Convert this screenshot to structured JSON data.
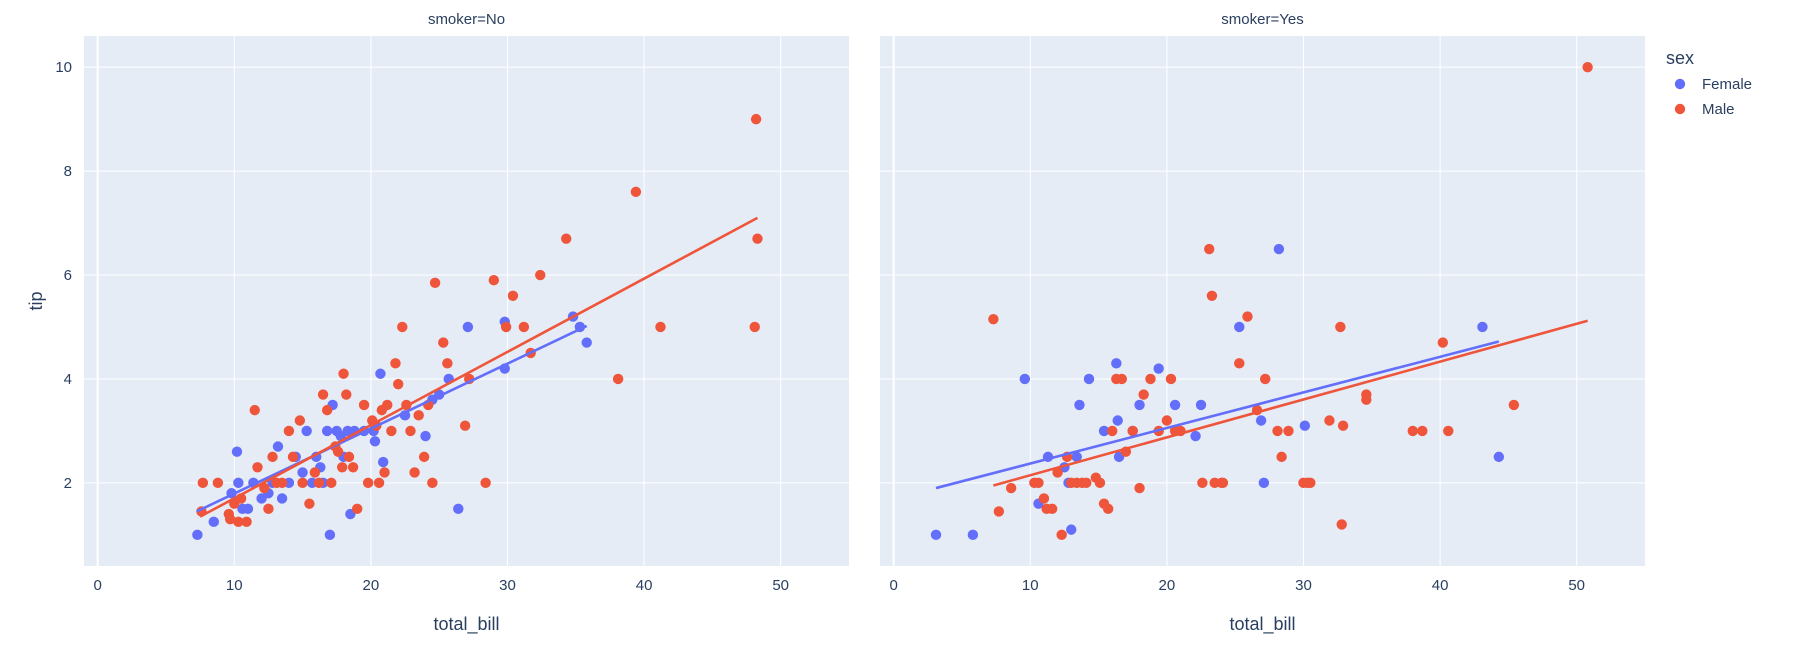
{
  "chart_data": {
    "type": "scatter",
    "trendline": "ols",
    "xlabel": "total_bill",
    "ylabel": "tip",
    "xlim": [
      -1,
      55
    ],
    "ylim": [
      0.4,
      10.6
    ],
    "xticks": [
      0,
      10,
      20,
      30,
      40,
      50
    ],
    "yticks": [
      2,
      4,
      6,
      8,
      10
    ],
    "grid": true,
    "legend": {
      "title": "sex",
      "placement": "top-right",
      "entries": [
        "Female",
        "Male"
      ]
    },
    "colors": {
      "Female": "#636efa",
      "Male": "#ef553b"
    },
    "facets": [
      {
        "title": "smoker=No",
        "series": [
          {
            "name": "Female",
            "points": [
              [
                7.3,
                1.0
              ],
              [
                8.5,
                1.25
              ],
              [
                9.8,
                1.8
              ],
              [
                10.2,
                2.6
              ],
              [
                10.3,
                2.0
              ],
              [
                10.6,
                1.5
              ],
              [
                11.0,
                1.5
              ],
              [
                11.4,
                2.0
              ],
              [
                12.0,
                1.7
              ],
              [
                12.5,
                1.8
              ],
              [
                12.8,
                2.0
              ],
              [
                13.2,
                2.7
              ],
              [
                13.5,
                1.7
              ],
              [
                14.0,
                2.0
              ],
              [
                14.5,
                2.5
              ],
              [
                15.0,
                2.2
              ],
              [
                15.3,
                3.0
              ],
              [
                15.7,
                2.0
              ],
              [
                16.0,
                2.5
              ],
              [
                16.3,
                2.3
              ],
              [
                16.5,
                2.0
              ],
              [
                16.8,
                3.0
              ],
              [
                17.0,
                1.0
              ],
              [
                17.2,
                3.5
              ],
              [
                17.5,
                3.0
              ],
              [
                17.8,
                2.9
              ],
              [
                18.0,
                2.5
              ],
              [
                18.3,
                3.0
              ],
              [
                18.5,
                1.4
              ],
              [
                18.8,
                3.0
              ],
              [
                19.5,
                3.0
              ],
              [
                20.2,
                3.0
              ],
              [
                20.3,
                2.8
              ],
              [
                20.7,
                4.1
              ],
              [
                20.9,
                2.4
              ],
              [
                22.5,
                3.3
              ],
              [
                24.0,
                2.9
              ],
              [
                24.5,
                3.6
              ],
              [
                25.0,
                3.7
              ],
              [
                25.7,
                4.0
              ],
              [
                26.4,
                1.5
              ],
              [
                27.1,
                5.0
              ],
              [
                29.8,
                5.1
              ],
              [
                29.8,
                4.2
              ],
              [
                34.8,
                5.2
              ],
              [
                35.3,
                5.0
              ],
              [
                35.8,
                4.7
              ]
            ]
          },
          {
            "name": "Male",
            "points": [
              [
                7.6,
                1.45
              ],
              [
                7.7,
                2.0
              ],
              [
                8.8,
                2.0
              ],
              [
                9.6,
                1.4
              ],
              [
                9.7,
                1.3
              ],
              [
                10.0,
                1.6
              ],
              [
                10.3,
                1.25
              ],
              [
                10.5,
                1.7
              ],
              [
                10.9,
                1.25
              ],
              [
                11.5,
                3.4
              ],
              [
                11.7,
                2.3
              ],
              [
                12.2,
                1.9
              ],
              [
                12.5,
                1.5
              ],
              [
                12.8,
                2.5
              ],
              [
                13.1,
                2.0
              ],
              [
                13.5,
                2.0
              ],
              [
                14.0,
                3.0
              ],
              [
                14.3,
                2.5
              ],
              [
                14.8,
                3.2
              ],
              [
                15.0,
                2.0
              ],
              [
                15.5,
                1.6
              ],
              [
                15.9,
                2.2
              ],
              [
                16.2,
                2.0
              ],
              [
                16.5,
                3.7
              ],
              [
                16.8,
                3.4
              ],
              [
                17.1,
                2.0
              ],
              [
                17.4,
                2.7
              ],
              [
                17.6,
                2.6
              ],
              [
                17.9,
                2.3
              ],
              [
                18.0,
                4.1
              ],
              [
                18.2,
                3.7
              ],
              [
                18.4,
                2.5
              ],
              [
                18.7,
                2.3
              ],
              [
                19.0,
                1.5
              ],
              [
                19.5,
                3.5
              ],
              [
                19.8,
                2.0
              ],
              [
                20.1,
                3.2
              ],
              [
                20.4,
                3.1
              ],
              [
                20.6,
                2.0
              ],
              [
                20.8,
                3.4
              ],
              [
                21.0,
                2.2
              ],
              [
                21.2,
                3.5
              ],
              [
                21.5,
                3.0
              ],
              [
                21.8,
                4.3
              ],
              [
                22.0,
                3.9
              ],
              [
                22.3,
                5.0
              ],
              [
                22.6,
                3.5
              ],
              [
                22.9,
                3.0
              ],
              [
                23.2,
                2.2
              ],
              [
                23.5,
                3.3
              ],
              [
                23.9,
                2.5
              ],
              [
                24.2,
                3.5
              ],
              [
                24.5,
                2.0
              ],
              [
                24.7,
                5.85
              ],
              [
                25.3,
                4.7
              ],
              [
                25.6,
                4.3
              ],
              [
                26.9,
                3.1
              ],
              [
                27.2,
                4.0
              ],
              [
                28.4,
                2.0
              ],
              [
                29.0,
                5.9
              ],
              [
                29.9,
                5.0
              ],
              [
                30.4,
                5.6
              ],
              [
                31.2,
                5.0
              ],
              [
                31.7,
                4.5
              ],
              [
                32.4,
                6.0
              ],
              [
                34.3,
                6.7
              ],
              [
                38.1,
                4.0
              ],
              [
                39.4,
                7.6
              ],
              [
                41.2,
                5.0
              ],
              [
                48.1,
                5.0
              ],
              [
                48.2,
                9.0
              ],
              [
                48.3,
                6.7
              ]
            ]
          }
        ],
        "trendlines": [
          {
            "name": "Female",
            "x": [
              7.25,
              35.8
            ],
            "y": [
              1.45,
              5.02
            ]
          },
          {
            "name": "Male",
            "x": [
              7.5,
              48.3
            ],
            "y": [
              1.35,
              7.1
            ]
          }
        ]
      },
      {
        "title": "smoker=Yes",
        "series": [
          {
            "name": "Female",
            "points": [
              [
                3.1,
                1.0
              ],
              [
                5.8,
                1.0
              ],
              [
                9.6,
                4.0
              ],
              [
                10.6,
                1.6
              ],
              [
                11.3,
                2.5
              ],
              [
                12.5,
                2.3
              ],
              [
                12.8,
                2.0
              ],
              [
                13.0,
                1.1
              ],
              [
                13.4,
                2.5
              ],
              [
                13.6,
                3.5
              ],
              [
                14.3,
                4.0
              ],
              [
                15.4,
                3.0
              ],
              [
                16.3,
                4.3
              ],
              [
                16.4,
                3.2
              ],
              [
                16.5,
                2.5
              ],
              [
                17.5,
                3.0
              ],
              [
                18.0,
                3.5
              ],
              [
                19.4,
                4.2
              ],
              [
                20.6,
                3.5
              ],
              [
                22.1,
                2.9
              ],
              [
                22.5,
                3.5
              ],
              [
                25.3,
                5.0
              ],
              [
                26.9,
                3.2
              ],
              [
                27.1,
                2.0
              ],
              [
                28.2,
                6.5
              ],
              [
                30.1,
                3.1
              ],
              [
                43.1,
                5.0
              ],
              [
                44.3,
                2.5
              ]
            ]
          },
          {
            "name": "Male",
            "points": [
              [
                7.3,
                5.15
              ],
              [
                7.7,
                1.45
              ],
              [
                8.6,
                1.9
              ],
              [
                10.3,
                2.0
              ],
              [
                10.6,
                2.0
              ],
              [
                11.0,
                1.7
              ],
              [
                11.2,
                1.5
              ],
              [
                11.6,
                1.5
              ],
              [
                12.0,
                2.2
              ],
              [
                12.3,
                1.0
              ],
              [
                12.7,
                2.5
              ],
              [
                13.0,
                2.0
              ],
              [
                13.4,
                2.0
              ],
              [
                13.8,
                2.0
              ],
              [
                14.1,
                2.0
              ],
              [
                14.8,
                2.1
              ],
              [
                15.1,
                2.0
              ],
              [
                15.4,
                1.6
              ],
              [
                15.7,
                1.5
              ],
              [
                16.0,
                3.0
              ],
              [
                16.3,
                4.0
              ],
              [
                16.7,
                4.0
              ],
              [
                17.0,
                2.6
              ],
              [
                17.5,
                3.0
              ],
              [
                18.0,
                1.9
              ],
              [
                18.3,
                3.7
              ],
              [
                18.8,
                4.0
              ],
              [
                19.4,
                3.0
              ],
              [
                20.0,
                3.2
              ],
              [
                20.3,
                4.0
              ],
              [
                20.6,
                3.0
              ],
              [
                21.0,
                3.0
              ],
              [
                22.6,
                2.0
              ],
              [
                23.1,
                6.5
              ],
              [
                23.3,
                5.6
              ],
              [
                23.5,
                2.0
              ],
              [
                24.0,
                2.0
              ],
              [
                24.1,
                2.0
              ],
              [
                25.3,
                4.3
              ],
              [
                25.9,
                5.2
              ],
              [
                26.6,
                3.4
              ],
              [
                27.2,
                4.0
              ],
              [
                28.1,
                3.0
              ],
              [
                28.4,
                2.5
              ],
              [
                28.9,
                3.0
              ],
              [
                30.0,
                2.0
              ],
              [
                30.3,
                2.0
              ],
              [
                30.5,
                2.0
              ],
              [
                31.9,
                3.2
              ],
              [
                32.7,
                5.0
              ],
              [
                32.8,
                1.2
              ],
              [
                32.9,
                3.1
              ],
              [
                34.6,
                3.7
              ],
              [
                34.6,
                3.6
              ],
              [
                38.0,
                3.0
              ],
              [
                38.7,
                3.0
              ],
              [
                40.2,
                4.7
              ],
              [
                40.6,
                3.0
              ],
              [
                45.4,
                3.5
              ],
              [
                50.8,
                10.0
              ]
            ]
          }
        ],
        "trendlines": [
          {
            "name": "Female",
            "x": [
              3.1,
              44.3
            ],
            "y": [
              1.9,
              4.72
            ]
          },
          {
            "name": "Male",
            "x": [
              7.3,
              50.8
            ],
            "y": [
              1.95,
              5.12
            ]
          }
        ]
      }
    ]
  }
}
